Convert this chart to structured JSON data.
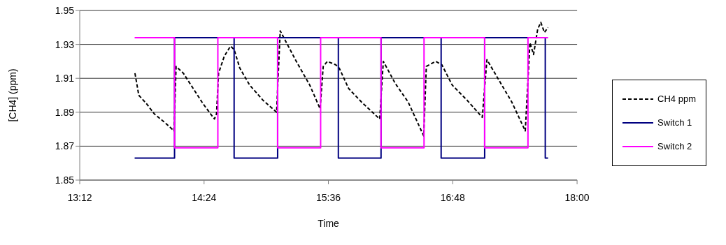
{
  "chart_data": {
    "type": "line",
    "xlabel": "Time",
    "ylabel": "[CH4] (ppm)",
    "xlim": [
      13.2,
      18.0
    ],
    "xticks": [
      {
        "value": 13.2,
        "label": "13:12"
      },
      {
        "value": 14.4,
        "label": "14:24"
      },
      {
        "value": 15.6,
        "label": "15:36"
      },
      {
        "value": 16.8,
        "label": "16:48"
      },
      {
        "value": 18.0,
        "label": "18:00"
      }
    ],
    "ylim": [
      1.85,
      1.95
    ],
    "yticks": [
      1.85,
      1.87,
      1.89,
      1.91,
      1.93,
      1.95
    ],
    "grid": "y",
    "legend": "right",
    "marker": "none",
    "series": [
      {
        "name": "CH4 ppm",
        "color": "#000000",
        "line_style": "dashed",
        "x": [
          13.733,
          13.77,
          13.845,
          13.92,
          14.02,
          14.11,
          14.13,
          14.2,
          14.295,
          14.39,
          14.5,
          14.52,
          14.54,
          14.595,
          14.655,
          14.69,
          14.745,
          14.84,
          14.97,
          15.1,
          15.135,
          15.195,
          15.29,
          15.42,
          15.52,
          15.55,
          15.59,
          15.67,
          15.705,
          15.795,
          15.92,
          16.095,
          16.13,
          16.245,
          16.37,
          16.52,
          16.545,
          16.635,
          16.695,
          16.795,
          16.94,
          17.085,
          17.13,
          17.245,
          17.37,
          17.5,
          17.545,
          17.58,
          17.62,
          17.65,
          17.685,
          17.72
        ],
        "values": [
          1.913,
          1.9,
          1.895,
          1.889,
          1.884,
          1.879,
          1.917,
          1.913,
          1.904,
          1.895,
          1.886,
          1.889,
          1.913,
          1.923,
          1.929,
          1.927,
          1.916,
          1.906,
          1.897,
          1.89,
          1.938,
          1.931,
          1.92,
          1.906,
          1.892,
          1.917,
          1.92,
          1.918,
          1.916,
          1.904,
          1.896,
          1.886,
          1.92,
          1.907,
          1.896,
          1.876,
          1.917,
          1.92,
          1.918,
          1.906,
          1.897,
          1.887,
          1.921,
          1.909,
          1.896,
          1.879,
          1.931,
          1.924,
          1.939,
          1.943,
          1.937,
          1.94
        ]
      },
      {
        "name": "Switch 1",
        "type": "step",
        "color": "#000080",
        "line_style": "solid",
        "x": [
          13.73,
          14.115,
          14.69,
          15.11,
          15.696,
          16.108,
          16.688,
          17.108,
          17.693,
          17.72
        ],
        "values": [
          1.863,
          1.934,
          1.863,
          1.934,
          1.863,
          1.934,
          1.863,
          1.934,
          1.863,
          1.863
        ]
      },
      {
        "name": "Switch 2",
        "type": "step",
        "color": "#ff00ff",
        "line_style": "solid",
        "x": [
          13.73,
          14.115,
          14.533,
          15.11,
          15.525,
          16.108,
          16.523,
          17.108,
          17.526,
          17.72
        ],
        "values": [
          1.934,
          1.869,
          1.934,
          1.869,
          1.934,
          1.869,
          1.934,
          1.869,
          1.934,
          1.934
        ]
      }
    ]
  }
}
